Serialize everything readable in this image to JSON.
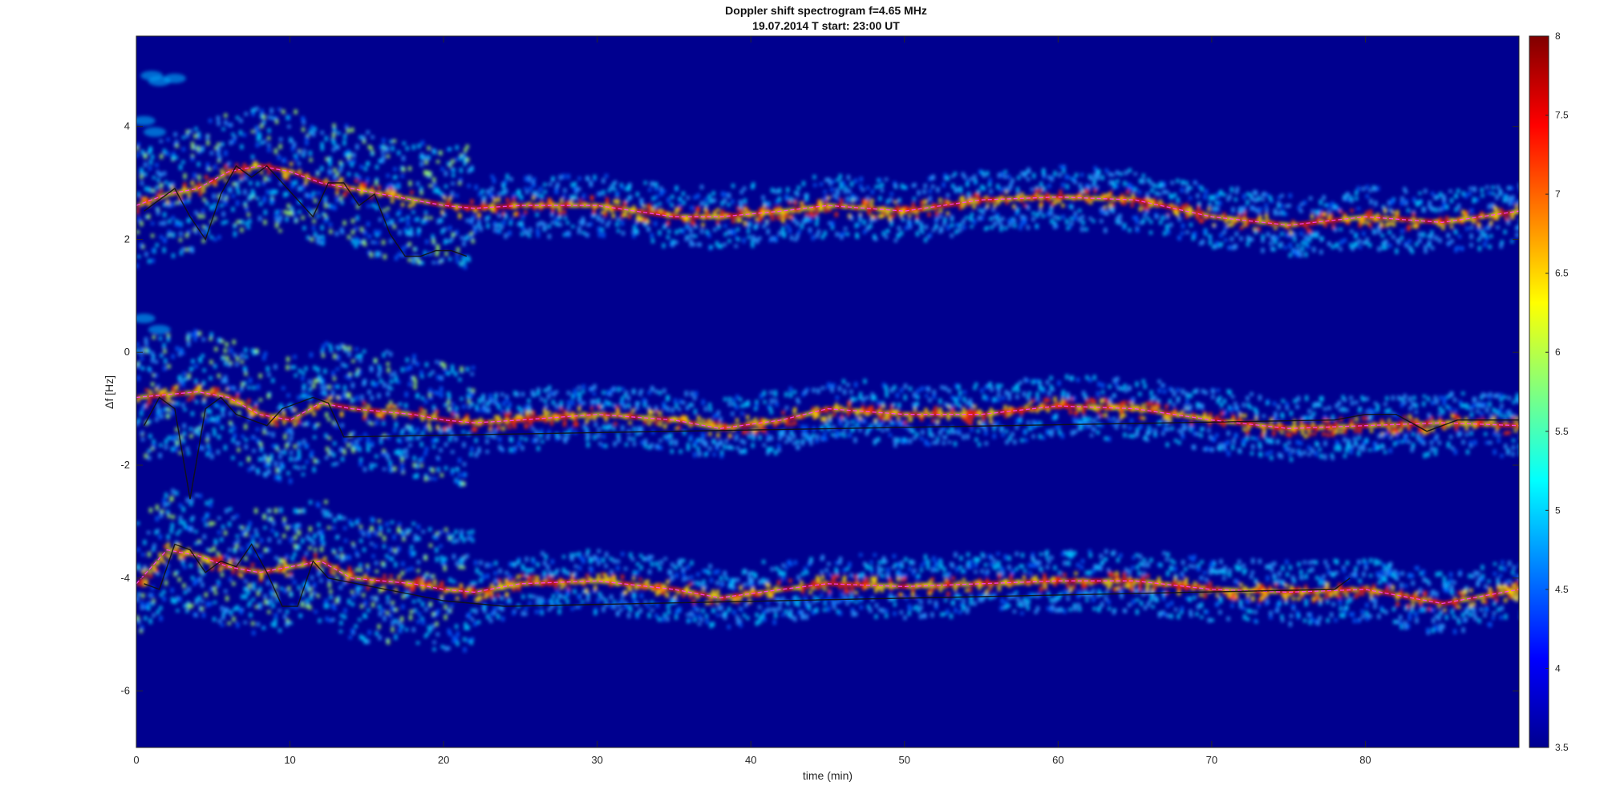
{
  "chart_data": {
    "type": "heatmap",
    "title": "Doppler shift spectrogram f=4.65 MHz",
    "subtitle": "19.07.2014   T start: 23:00 UT",
    "xlabel": "time (min)",
    "ylabel": "Δf [Hz]",
    "xlim": [
      0,
      90
    ],
    "ylim": [
      -7,
      5.6
    ],
    "xticks": [
      0,
      10,
      20,
      30,
      40,
      50,
      60,
      70,
      80
    ],
    "yticks": [
      -6,
      -4,
      -2,
      0,
      2,
      4
    ],
    "grid": false,
    "colormap": "jet",
    "colorbar": {
      "range": [
        3.5,
        8
      ],
      "ticks": [
        3.5,
        4,
        4.5,
        5,
        5.5,
        6,
        6.5,
        7,
        7.5,
        8
      ]
    },
    "background_color": "#00008f",
    "series": [
      {
        "name": "",
        "color": "#ff40ff",
        "bands": [
          {
            "x": [
              0,
              2,
              4,
              6,
              8,
              10,
              12,
              14,
              16,
              18,
              20,
              22,
              25,
              30,
              35,
              38,
              42,
              45,
              50,
              55,
              60,
              65,
              70,
              75,
              80,
              85,
              90
            ],
            "y": [
              2.6,
              2.8,
              2.9,
              3.2,
              3.3,
              3.2,
              3.0,
              2.9,
              2.8,
              2.7,
              2.6,
              2.55,
              2.6,
              2.6,
              2.4,
              2.4,
              2.5,
              2.6,
              2.5,
              2.7,
              2.75,
              2.7,
              2.4,
              2.25,
              2.4,
              2.3,
              2.5
            ]
          },
          {
            "x": [
              0,
              2,
              4,
              6,
              8,
              10,
              12,
              14,
              16,
              18,
              20,
              22,
              25,
              30,
              35,
              38,
              42,
              45,
              50,
              55,
              60,
              65,
              70,
              75,
              80,
              85,
              90
            ],
            "y": [
              -0.8,
              -0.75,
              -0.7,
              -0.8,
              -1.1,
              -1.2,
              -0.9,
              -1.0,
              -1.05,
              -1.1,
              -1.2,
              -1.25,
              -1.2,
              -1.1,
              -1.2,
              -1.35,
              -1.2,
              -1.0,
              -1.1,
              -1.1,
              -0.95,
              -1.0,
              -1.2,
              -1.35,
              -1.3,
              -1.25,
              -1.3
            ]
          },
          {
            "x": [
              0,
              2,
              4,
              6,
              8,
              10,
              12,
              14,
              16,
              18,
              20,
              22,
              25,
              30,
              35,
              38,
              42,
              45,
              50,
              55,
              60,
              65,
              70,
              75,
              80,
              85,
              90
            ],
            "y": [
              -4.1,
              -3.5,
              -3.6,
              -3.8,
              -3.9,
              -3.8,
              -3.7,
              -4.0,
              -4.05,
              -4.1,
              -4.2,
              -4.25,
              -4.1,
              -4.05,
              -4.2,
              -4.35,
              -4.2,
              -4.1,
              -4.15,
              -4.1,
              -4.05,
              -4.05,
              -4.2,
              -4.25,
              -4.2,
              -4.45,
              -4.2
            ]
          }
        ]
      },
      {
        "name": "",
        "color": "#111111",
        "bands": [
          {
            "x": [
              0.5,
              1.5,
              2.5,
              3.5,
              4.5,
              5.5,
              6.5,
              7.5,
              8.5,
              9.5,
              10.5,
              11.5,
              12.5,
              13.5,
              14.5,
              15.5,
              16.5,
              17.5,
              18.5,
              19.5,
              20.5,
              21.5
            ],
            "y": [
              2.5,
              2.7,
              2.9,
              2.4,
              2.0,
              2.8,
              3.3,
              3.1,
              3.3,
              3.0,
              2.7,
              2.4,
              3.0,
              3.0,
              2.6,
              2.8,
              2.1,
              1.7,
              1.7,
              1.8,
              1.8,
              1.7
            ]
          },
          {
            "x": [
              0.5,
              1.5,
              2.5,
              3.5,
              4.5,
              5.5,
              6.5,
              7.5,
              8.5,
              9.5,
              10.5,
              11.5,
              12.5,
              13.5,
              78,
              80,
              82,
              84,
              86,
              88,
              90
            ],
            "y": [
              -1.3,
              -0.8,
              -1.0,
              -2.6,
              -1.0,
              -0.8,
              -1.1,
              -1.2,
              -1.3,
              -1.0,
              -0.9,
              -0.8,
              -0.9,
              -1.5,
              -1.2,
              -1.1,
              -1.1,
              -1.4,
              -1.2,
              -1.2,
              -1.2
            ]
          },
          {
            "x": [
              0.5,
              1.5,
              2.5,
              3.5,
              4.5,
              5.5,
              6.5,
              7.5,
              8.5,
              9.5,
              10.5,
              11.5,
              12.5,
              20,
              24,
              78,
              79
            ],
            "y": [
              -4.1,
              -4.2,
              -3.4,
              -3.5,
              -3.9,
              -3.7,
              -3.8,
              -3.4,
              -3.9,
              -4.5,
              -4.5,
              -3.7,
              -4.0,
              -4.4,
              -4.5,
              -4.2,
              -4.0
            ]
          }
        ]
      }
    ]
  }
}
